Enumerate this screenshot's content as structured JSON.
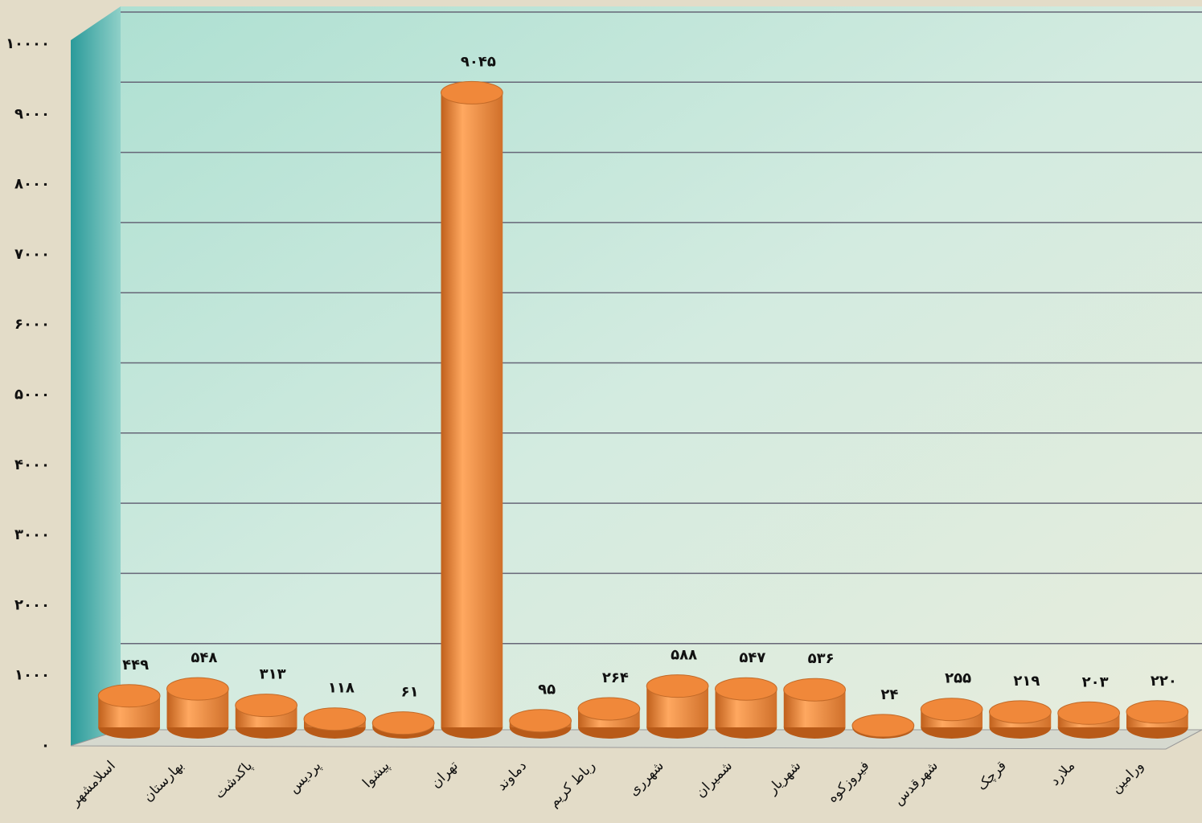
{
  "chart_data": {
    "type": "bar3d",
    "categories": [
      "اسلامشهر",
      "بهارستان",
      "پاکدشت",
      "پردیس",
      "پیشوا",
      "تهران",
      "دماوند",
      "رباط کریم",
      "شهرری",
      "شمیران",
      "شهریار",
      "فیروزکوه",
      "شهرقدس",
      "قرچک",
      "ملارد",
      "ورامین"
    ],
    "values": [
      449,
      548,
      313,
      118,
      61,
      9045,
      95,
      264,
      588,
      547,
      536,
      24,
      255,
      219,
      203,
      220
    ],
    "value_labels": [
      "۴۴۹",
      "۵۴۸",
      "۳۱۳",
      "۱۱۸",
      "۶۱",
      "۹۰۴۵",
      "۹۵",
      "۲۶۴",
      "۵۸۸",
      "۵۴۷",
      "۵۳۶",
      "۲۴",
      "۲۵۵",
      "۲۱۹",
      "۲۰۳",
      "۲۲۰"
    ],
    "color": "#f0883a",
    "ylim": [
      0,
      10000
    ],
    "yticks": [
      {
        "value": 0,
        "label": "۰"
      },
      {
        "value": 1000,
        "label": "۱۰۰۰"
      },
      {
        "value": 2000,
        "label": "۲۰۰۰"
      },
      {
        "value": 3000,
        "label": "۳۰۰۰"
      },
      {
        "value": 4000,
        "label": "۴۰۰۰"
      },
      {
        "value": 5000,
        "label": "۵۰۰۰"
      },
      {
        "value": 6000,
        "label": "۶۰۰۰"
      },
      {
        "value": 7000,
        "label": "۷۰۰۰"
      },
      {
        "value": 8000,
        "label": "۸۰۰۰"
      },
      {
        "value": 9000,
        "label": "۹۰۰۰"
      },
      {
        "value": 10000,
        "label": "۱۰۰۰۰"
      }
    ],
    "grid": true
  }
}
